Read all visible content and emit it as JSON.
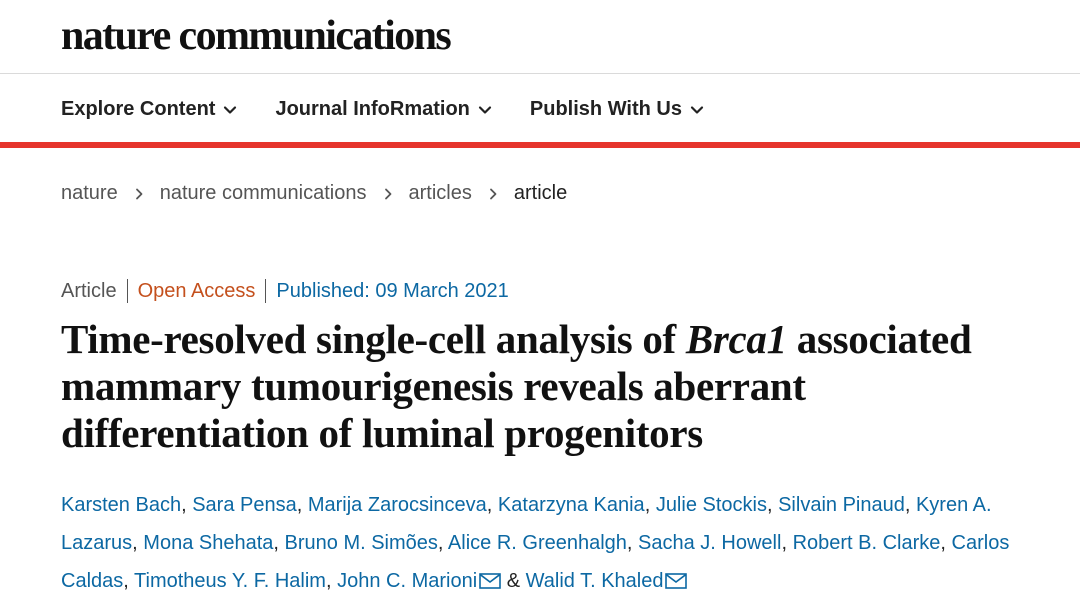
{
  "site": {
    "logo": "nature communications"
  },
  "nav": {
    "items": [
      {
        "label": "Explore Content"
      },
      {
        "label": "Journal InfoRmation"
      },
      {
        "label": "Publish With Us"
      }
    ]
  },
  "breadcrumb": {
    "items": [
      "nature",
      "nature communications",
      "articles"
    ],
    "current": "article"
  },
  "article": {
    "type": "Article",
    "access": "Open Access",
    "published": "Published: 09 March 2021",
    "title_before": "Time-resolved single-cell analysis of ",
    "title_gene": "Brca1",
    "title_after": " associated mammary tumourigenesis reveals aberrant differentiation of luminal progenitors",
    "authors": [
      "Karsten Bach",
      "Sara Pensa",
      "Marija Zarocsinceva",
      "Katarzyna Kania",
      "Julie Stockis",
      "Silvain Pinaud",
      "Kyren A. Lazarus",
      "Mona Shehata",
      "Bruno M. Simões",
      "Alice R. Greenhalgh",
      "Sacha J. Howell",
      "Robert B. Clarke",
      "Carlos Caldas",
      "Timotheus Y. F. Halim",
      "John C. Marioni",
      "Walid T. Khaled"
    ],
    "author_and": "&"
  },
  "colors": {
    "accent_red": "#e6342c",
    "link_blue": "#0c68a3",
    "open_access": "#c4501d"
  },
  "icons": {
    "nav_chevron": "chevron-down-icon",
    "breadcrumb_sep": "chevron-right-icon",
    "mail": "mail-icon"
  }
}
